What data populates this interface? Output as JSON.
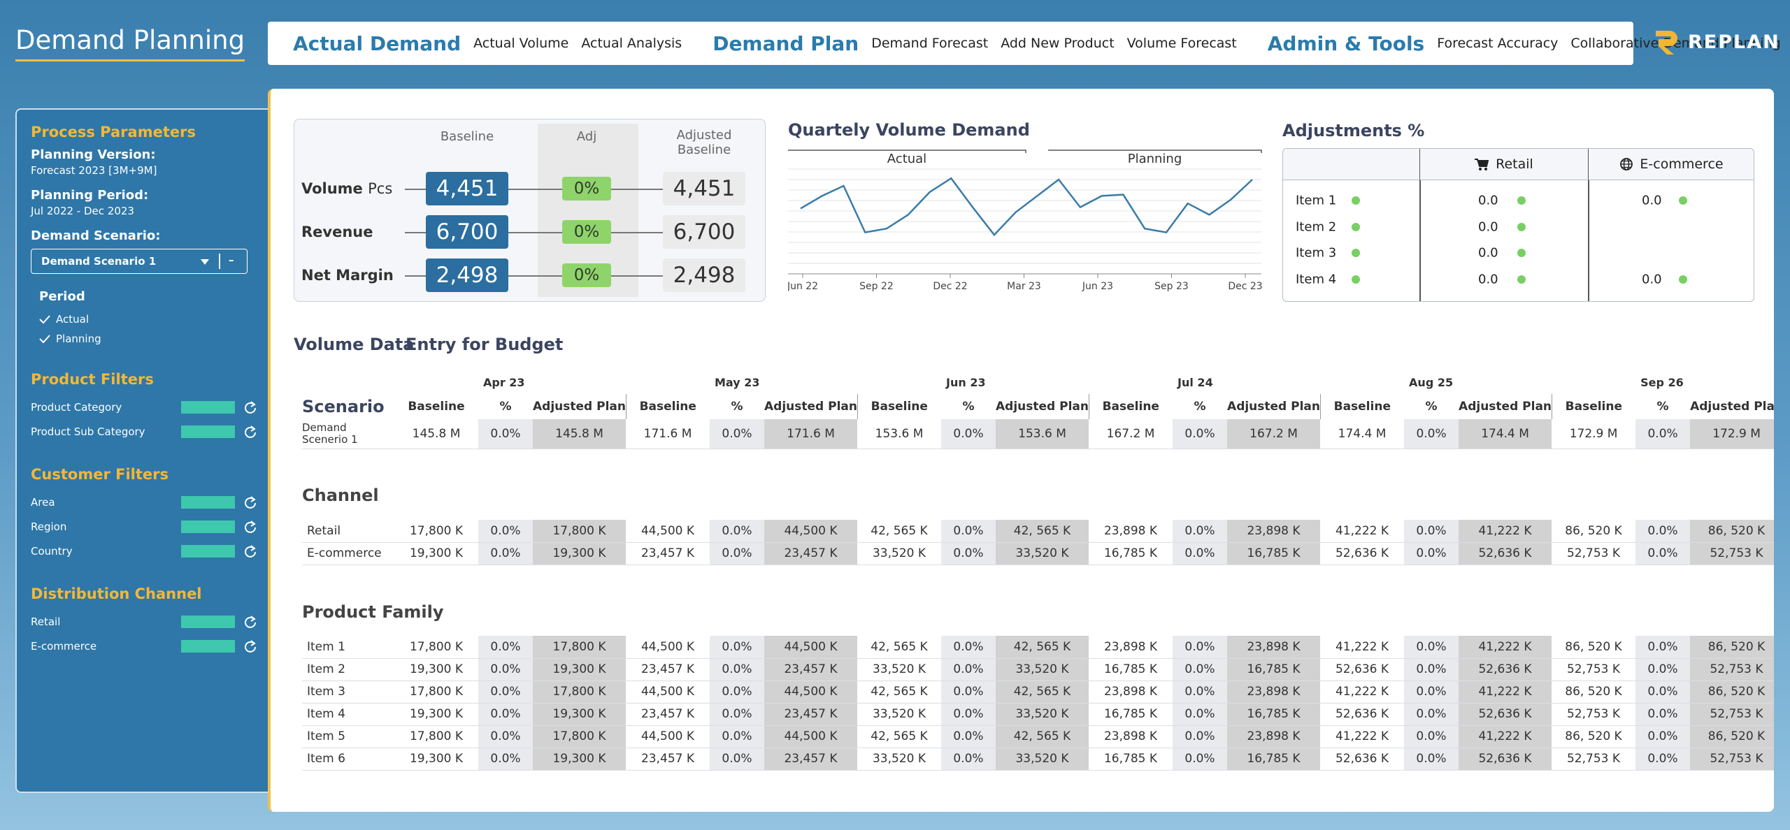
{
  "header": {
    "title": "Demand Planning",
    "nav": [
      {
        "heading": "Actual Demand",
        "links": [
          "Actual Volume",
          "Actual Analysis"
        ]
      },
      {
        "heading": "Demand Plan",
        "links": [
          "Demand Forecast",
          "Add New Product",
          "Volume Forecast"
        ]
      },
      {
        "heading": "Admin & Tools",
        "links": [
          "Forecast Accuracy",
          "Collaborative Demand Planning"
        ]
      }
    ],
    "logo": "REPLAN"
  },
  "sidebar": {
    "title": "Process Parameters",
    "fields": [
      {
        "label": "Planning Version:",
        "value": "Forecast 2023 [3M+9M]"
      },
      {
        "label": "Planning Period:",
        "value": "Jul 2022 - Dec 2023"
      }
    ],
    "scenario_label": "Demand Scenario:",
    "scenario_select": "Demand Scenario 1",
    "scenario_button": "–",
    "period": {
      "title": "Period",
      "options": [
        "Actual",
        "Planning"
      ]
    },
    "filters": [
      {
        "title": "Product Filters",
        "items": [
          "Product Category",
          "Product Sub Category"
        ]
      },
      {
        "title": "Customer Filters",
        "items": [
          "Area",
          "Region",
          "Country"
        ]
      },
      {
        "title": "Distribution Channel",
        "items": [
          "Retail",
          "E-commerce"
        ]
      }
    ]
  },
  "kpi": {
    "headers": [
      "Baseline",
      "Adj",
      "Adjusted Baseline"
    ],
    "rows": [
      {
        "label": "Volume",
        "unit": "Pcs",
        "baseline": "4,451",
        "adj": "0%",
        "adjusted": "4,451"
      },
      {
        "label": "Revenue",
        "baseline": "6,700",
        "adj": "0%",
        "adjusted": "6,700"
      },
      {
        "label": "Net Margin",
        "baseline": "2,498",
        "adj": "0%",
        "adjusted": "2,498"
      }
    ]
  },
  "volume_chart": {
    "type": "line",
    "title": "Quartely Volume Demand",
    "legend_groups": [
      "Actual",
      "Planning"
    ],
    "x_labels": [
      "Jun 22",
      "Sep 22",
      "Dec 22",
      "Mar 23",
      "Jun 23",
      "Sep 23",
      "Dec 23"
    ],
    "values": [
      52,
      62,
      70,
      33,
      36,
      47,
      65,
      76,
      53,
      31,
      49,
      62,
      75,
      53,
      62,
      63,
      36,
      33,
      56,
      47,
      59,
      75
    ],
    "ylim": [
      0,
      100
    ],
    "color": "#3a7ca8"
  },
  "adjustments": {
    "title": "Adjustments %",
    "columns": [
      "Retail",
      "E-commerce"
    ],
    "rows": [
      {
        "item": "Item 1",
        "retail": "0.0",
        "ecommerce": "0.0"
      },
      {
        "item": "Item 2",
        "retail": "0.0"
      },
      {
        "item": "Item 3",
        "retail": "0.0"
      },
      {
        "item": "Item 4",
        "retail": "0.0",
        "ecommerce": "0.0"
      }
    ]
  },
  "volume_data": {
    "title": "Volume Data",
    "subtitle": "Entry for Budget",
    "months": [
      "Apr 23",
      "May 23",
      "Jun 23",
      "Jul 24",
      "Aug 25",
      "Sep 26"
    ],
    "column_headers": [
      "Baseline",
      "%",
      "Adjusted Plan"
    ],
    "scenario_header": "Scenario",
    "scenario_rows": [
      {
        "label": "Demand Scenerio 1",
        "cells": [
          "145.8 M",
          "0.0%",
          "145.8 M",
          "171.6 M",
          "0.0%",
          "171.6 M",
          "153.6 M",
          "0.0%",
          "153.6 M",
          "167.2 M",
          "0.0%",
          "167.2 M",
          "174.4 M",
          "0.0%",
          "174.4 M",
          "172.9 M",
          "0.0%",
          "172.9 M"
        ]
      }
    ],
    "channel": {
      "title": "Channel",
      "rows": [
        {
          "label": "Retail",
          "cells": [
            "17,800 K",
            "0.0%",
            "17,800 K",
            "44,500 K",
            "0.0%",
            "44,500 K",
            "42, 565 K",
            "0.0%",
            "42, 565 K",
            "23,898 K",
            "0.0%",
            "23,898 K",
            "41,222 K",
            "0.0%",
            "41,222 K",
            "86, 520 K",
            "0.0%",
            "86, 520 K"
          ]
        },
        {
          "label": "E-commerce",
          "cells": [
            "19,300 K",
            "0.0%",
            "19,300 K",
            "23,457 K",
            "0.0%",
            "23,457 K",
            "33,520 K",
            "0.0%",
            "33,520 K",
            "16,785 K",
            "0.0%",
            "16,785 K",
            "52,636 K",
            "0.0%",
            "52,636 K",
            "52,753 K",
            "0.0%",
            "52,753 K"
          ]
        }
      ]
    },
    "product_family": {
      "title": "Product Family",
      "rows": [
        {
          "label": "Item 1",
          "cells": [
            "17,800 K",
            "0.0%",
            "17,800 K",
            "44,500 K",
            "0.0%",
            "44,500 K",
            "42, 565 K",
            "0.0%",
            "42, 565 K",
            "23,898 K",
            "0.0%",
            "23,898 K",
            "41,222 K",
            "0.0%",
            "41,222 K",
            "86, 520 K",
            "0.0%",
            "86, 520 K"
          ]
        },
        {
          "label": "Item 2",
          "cells": [
            "19,300 K",
            "0.0%",
            "19,300 K",
            "23,457 K",
            "0.0%",
            "23,457 K",
            "33,520 K",
            "0.0%",
            "33,520 K",
            "16,785 K",
            "0.0%",
            "16,785 K",
            "52,636 K",
            "0.0%",
            "52,636 K",
            "52,753 K",
            "0.0%",
            "52,753 K"
          ]
        },
        {
          "label": "Item 3",
          "cells": [
            "17,800 K",
            "0.0%",
            "17,800 K",
            "44,500 K",
            "0.0%",
            "44,500 K",
            "42, 565 K",
            "0.0%",
            "42, 565 K",
            "23,898 K",
            "0.0%",
            "23,898 K",
            "41,222 K",
            "0.0%",
            "41,222 K",
            "86, 520 K",
            "0.0%",
            "86, 520 K"
          ]
        },
        {
          "label": "Item 4",
          "cells": [
            "19,300 K",
            "0.0%",
            "19,300 K",
            "23,457 K",
            "0.0%",
            "23,457 K",
            "33,520 K",
            "0.0%",
            "33,520 K",
            "16,785 K",
            "0.0%",
            "16,785 K",
            "52,636 K",
            "0.0%",
            "52,636 K",
            "52,753 K",
            "0.0%",
            "52,753 K"
          ]
        },
        {
          "label": "Item 5",
          "cells": [
            "17,800 K",
            "0.0%",
            "17,800 K",
            "44,500 K",
            "0.0%",
            "44,500 K",
            "42, 565 K",
            "0.0%",
            "42, 565 K",
            "23,898 K",
            "0.0%",
            "23,898 K",
            "41,222 K",
            "0.0%",
            "41,222 K",
            "86, 520 K",
            "0.0%",
            "86, 520 K"
          ]
        },
        {
          "label": "Item 6",
          "cells": [
            "19,300 K",
            "0.0%",
            "19,300 K",
            "23,457 K",
            "0.0%",
            "23,457 K",
            "33,520 K",
            "0.0%",
            "33,520 K",
            "16,785 K",
            "0.0%",
            "16,785 K",
            "52,636 K",
            "0.0%",
            "52,636 K",
            "52,753 K",
            "0.0%",
            "52,753 K"
          ]
        }
      ]
    }
  }
}
